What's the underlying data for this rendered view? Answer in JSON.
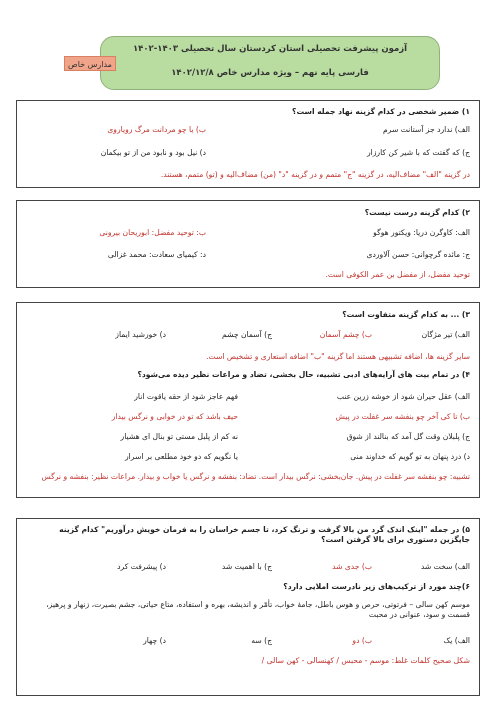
{
  "header": {
    "title": "آزمون پیشرفت تحصیلی استان کردستان سال تحصیلی ۱۴۰۳-۱۴۰۲",
    "subtitle": "فارسی پایه نهم – ویژه مدارس خاص ۱۴۰۲/۱۲/۸",
    "badge": "مدارس خاص"
  },
  "q1": {
    "stem": "۱) ضمیر شخصی در کدام گزینه نهاد جمله است؟",
    "a": "الف) ندارد جز آستانت سرم",
    "b": "ب) یا چو مردانت مرگ رویاروی",
    "c": "ج) که گفتت که با شیر کن کارزار",
    "d": "د) نیل بود و نابود من از تو بیکمان",
    "answer": "در گزینه \"الف\" مضاف‌الیه، در گزینه \"ج\" متمم و در گزینه \"د\" (من) مضاف‌الیه و (تو) متمم، هستند."
  },
  "q2": {
    "stem": "۲) کدام گزینه درست نیست؟",
    "a": "الف: کاوگرن دریا: ویکتور هوگو",
    "b": "ب: توحید مفضل: ابوریحان بیرونی",
    "c": "ج: مائده گرچوانی: حسن آلاوردی",
    "d": "د: کیمیای سعادت: محمد غزالی",
    "answer": "توحید مفضل، از مفضل بن عمر الکوفی است."
  },
  "q3": {
    "stem": "۳) ... به کدام گزینه متفاوت است؟",
    "a": "الف) تیر مژگان",
    "b": "ب) چشم آسمان",
    "c": "ج) آسمان چشم",
    "d": "د) خورشید ایماز",
    "answer": "سایر گزینه ها، اضافه تشبیهی هستند اما گزینه \"ب\" اضافه استعاری و تشخیص است."
  },
  "q4": {
    "stem": "۴) در تمام بیت های آرایه‌های ادبی تشبیه، حال بخشی، تضاد و مراعات نظیر دیده می‌شود؟",
    "a1": "الف) عقل حیران شود از خوشه زرین عنب",
    "a2": "فهم عاجز شود از حقه یاقوت انار",
    "b1": "ب) تا کی آخر چو بنفشه سر غفلت در پیش",
    "b2": "حیف باشد که تو در خوابی و نرگس بیدار",
    "c1": "ج) پلبلان وقت گل آمد که بنالند از شوق",
    "c2": "نه کم از پلبل مستی تو بنال ای هشیار",
    "d1": "د) درد پنهان به تو گویم که خداوند منی",
    "d2": "یا نگویم که دو خود مطلعی بر اسرار",
    "answer": "تشبیه: چو بنفشه سر غفلت در پیش. جان‌بخشی: نرگس بیدار است. تضاد: بنفشه و نرگس یا خواب و بیدار. مراعات نظیر: بنفشه و نرگس"
  },
  "q5": {
    "stem": "۵) در جمله \"اینک اندک گرد من بالا گرفت و ترنگ کرد، تا جسم خراسان را به فرمان خویش درآوریم\" کدام گزینه جایگزین دستوری برای بالا گرفتن است؟",
    "a": "الف) سخت شد",
    "b": "ب) جدی شد",
    "c": "ج) با اهمیت شد",
    "d": "د) پیشرفت کرد"
  },
  "q6": {
    "stem": "۶)چند مورد از ترکیب‌های زیر نادرست املایی دارد؟",
    "text": "موسم کهن سالی – فرتوتی، حرص و هوس باطل، جامهٔ خواب، تأمّر و اندیشه، بهره و استفاده، متاع حیاتی، جشم بصیرت، زنهار و پرهیز، قسمت و سود، عنوانی در محبت",
    "a": "الف) یک",
    "b": "ب) دو",
    "c": "ج) سه",
    "d": "د) چهار",
    "answer": "شکل صحیح کلمات غلط: موسم - محبس / کهنسالی - کهن سالی /"
  }
}
